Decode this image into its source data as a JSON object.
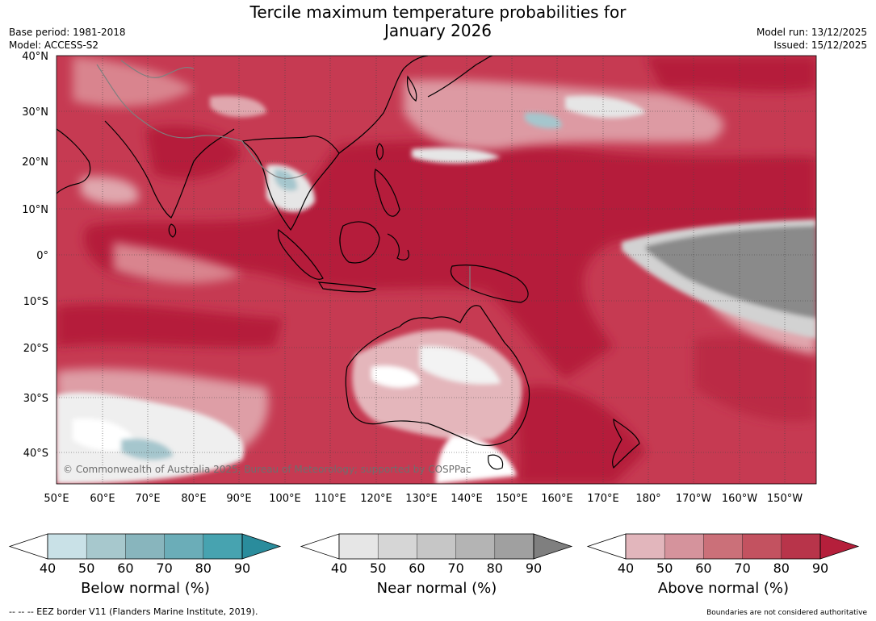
{
  "header": {
    "title_line1": "Tercile maximum temperature probabilities for",
    "title_line2": "January 2026",
    "base_period": "Base period: 1981-2018",
    "model": "Model: ACCESS-S2",
    "model_run": "Model run: 13/12/2025",
    "issued": "Issued: 15/12/2025"
  },
  "map": {
    "lat_labels": [
      "40°N",
      "30°N",
      "20°N",
      "10°N",
      "0°",
      "10°S",
      "20°S",
      "30°S",
      "40°S"
    ],
    "lon_labels": [
      "50°E",
      "60°E",
      "70°E",
      "80°E",
      "90°E",
      "100°E",
      "110°E",
      "120°E",
      "130°E",
      "140°E",
      "150°E",
      "160°E",
      "170°E",
      "180°",
      "170°W",
      "160°W",
      "150°W"
    ],
    "copyright": "© Commonwealth of Australia 2025, Bureau of Meteorology; supported by COSPPac",
    "colors": {
      "above_90": "#b51f3b",
      "above_80": "#c73850",
      "above_70": "#d0626f",
      "above_60": "#d9848e",
      "above_50": "#e0a7ae",
      "above_40": "#e8c4c8",
      "near_50": "#e6e6e6",
      "near_60": "#cfcfcf",
      "near_70": "#b3b3b3",
      "near_90": "#8a8a8a",
      "below_50": "#c8e0e6",
      "below_60": "#a5c6cd"
    }
  },
  "legends": [
    {
      "title": "Below normal (%)",
      "ticks": [
        "40",
        "50",
        "60",
        "70",
        "80",
        "90"
      ],
      "colors": [
        "#ffffff",
        "#c9e1e7",
        "#a7c8cd",
        "#88b5bd",
        "#6badb8",
        "#47a3b0",
        "#2a8c9c"
      ]
    },
    {
      "title": "Near normal (%)",
      "ticks": [
        "40",
        "50",
        "60",
        "70",
        "80",
        "90"
      ],
      "colors": [
        "#ffffff",
        "#e6e6e6",
        "#d6d6d6",
        "#c6c6c6",
        "#b4b4b4",
        "#a0a0a0",
        "#7f7f7f"
      ]
    },
    {
      "title": "Above normal (%)",
      "ticks": [
        "40",
        "50",
        "60",
        "70",
        "80",
        "90"
      ],
      "colors": [
        "#ffffff",
        "#e2b6bc",
        "#d5939c",
        "#cb7079",
        "#c35260",
        "#b8344a",
        "#b51f3b"
      ]
    }
  ],
  "footer": {
    "eez": "--  --  -- EEZ border V11 (Flanders Marine Institute, 2019).",
    "disclaimer": "Boundaries are not considered authoritative"
  }
}
